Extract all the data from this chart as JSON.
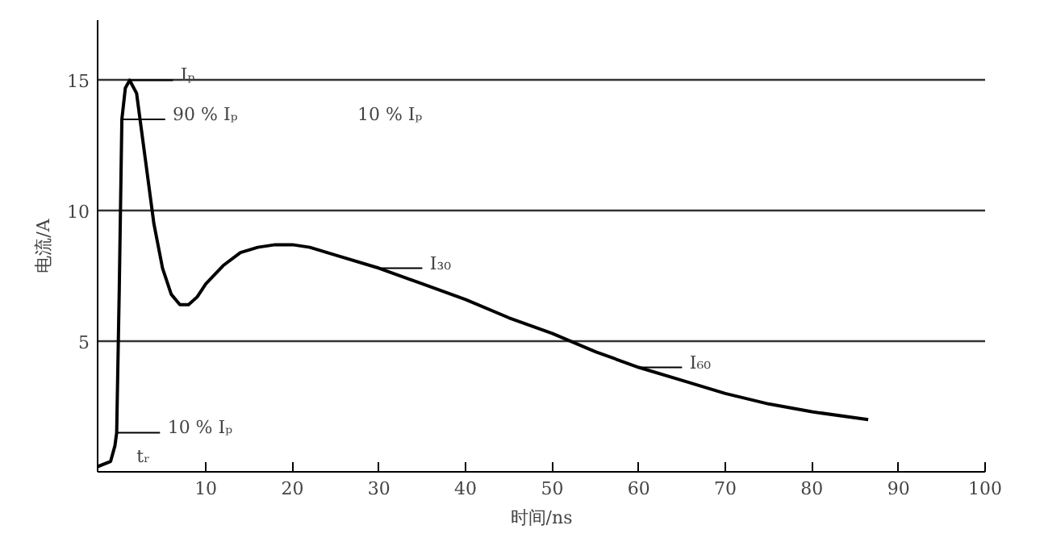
{
  "chart_data": {
    "type": "line",
    "xlabel": "时间/ns",
    "ylabel": "电流/A",
    "x": [
      -2.5,
      -1,
      -0.5,
      -0.3,
      0,
      0.3,
      0.7,
      1.2,
      2,
      3,
      4,
      5,
      6,
      7,
      8,
      9,
      10,
      12,
      14,
      16,
      18,
      20,
      22,
      25,
      30,
      35,
      40,
      45,
      50,
      55,
      60,
      65,
      70,
      75,
      80,
      86.5
    ],
    "series": [
      {
        "color": "#000000",
        "values": [
          0.2,
          0.4,
          1.0,
          1.5,
          7.0,
          13.5,
          14.7,
          15.0,
          14.5,
          12.0,
          9.5,
          7.8,
          6.8,
          6.4,
          6.4,
          6.7,
          7.2,
          7.9,
          8.4,
          8.6,
          8.7,
          8.7,
          8.6,
          8.3,
          7.8,
          7.2,
          6.6,
          5.9,
          5.3,
          4.6,
          4.0,
          3.5,
          3.0,
          2.6,
          2.3,
          2.0
        ]
      }
    ],
    "xlim": [
      -2.5,
      100
    ],
    "ylim": [
      0,
      17.3
    ],
    "xticks": [
      10,
      20,
      30,
      40,
      50,
      60,
      70,
      80,
      90,
      100
    ],
    "yticks": [
      5,
      10,
      15
    ],
    "grid": "y",
    "marker": "none",
    "line_style": "solid",
    "annotations": [
      {
        "text": "Iₚ",
        "x": 1.2,
        "y": 15
      },
      {
        "text": "90 % Iₚ",
        "x": 0.3,
        "y": 13.5
      },
      {
        "text": "10 % Iₚ",
        "x": -0.3,
        "y": 1.5
      },
      {
        "text": "I₃₀",
        "x": 30,
        "y": 7.8
      },
      {
        "text": "I₆₀",
        "x": 60,
        "y": 4.0
      },
      "10 % Iₚ",
      "tᵣ"
    ]
  }
}
